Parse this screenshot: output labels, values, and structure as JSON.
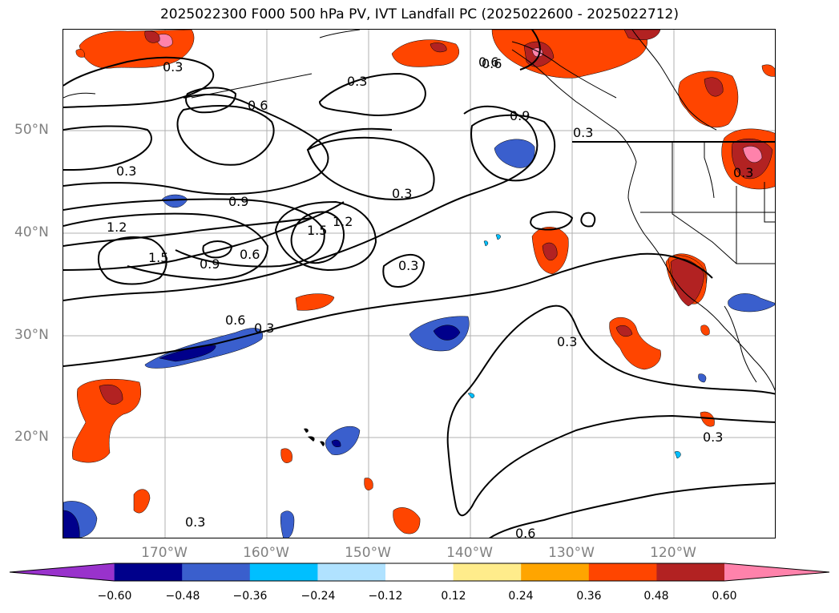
{
  "title": "2025022300 F000 500 hPa PV, IVT Landfall PC (2025022600 - 2025022712)",
  "lat_labels": [
    "50°N",
    "40°N",
    "30°N",
    "20°N"
  ],
  "lon_labels": [
    "170°W",
    "160°W",
    "150°W",
    "140°W",
    "130°W",
    "120°W"
  ],
  "colorbar": {
    "ticks": [
      "−0.60",
      "−0.48",
      "−0.36",
      "−0.24",
      "−0.12",
      "0.12",
      "0.24",
      "0.36",
      "0.48",
      "0.60"
    ],
    "colors": [
      "#9932cc",
      "#00008b",
      "#3a5fcd",
      "#00bfff",
      "#b0e2ff",
      "#ffffff",
      "#ffec8b",
      "#ffa500",
      "#ff4500",
      "#b22222",
      "#ff82ab"
    ]
  },
  "contour_labels": [
    "0.3",
    "0.3",
    "0.6",
    "0.3",
    "0.9",
    "0.6",
    "0.3",
    "0.3",
    "0.9",
    "1.2",
    "1.5",
    "0.9",
    "0.6",
    "1.5",
    "1.2",
    "0.3",
    "0.6",
    "0.3",
    "0.3",
    "0.3",
    "0.3",
    "0.6",
    "0.3",
    "0.6"
  ]
}
